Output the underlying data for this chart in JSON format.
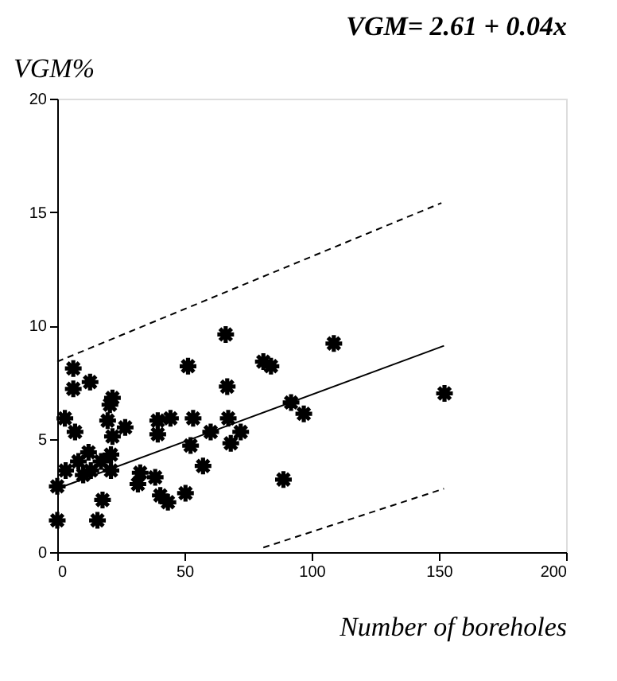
{
  "chart_data": {
    "type": "scatter",
    "title": "VGM= 2.61 + 0.04x",
    "xlabel": "Number of boreholes",
    "ylabel": "VGM%",
    "xlim": [
      0,
      200
    ],
    "ylim": [
      0,
      20
    ],
    "xticks": [
      0,
      50,
      100,
      150,
      200
    ],
    "yticks": [
      0,
      5,
      10,
      15,
      20
    ],
    "grid": false,
    "series": [
      {
        "marker": "cross",
        "color": "#000000",
        "x": [
          0,
          0,
          3,
          6.3,
          6.3,
          7,
          12.9,
          3.3,
          8.3,
          12.3,
          13.2,
          10.2,
          17.2,
          21.1,
          21.1,
          17.8,
          15.8,
          21.7,
          20.7,
          19.8,
          26.7,
          21.7,
          32.6,
          31.7,
          38.5,
          40.5,
          43.5,
          39.5,
          39.5,
          44.5,
          50.4,
          51.4,
          52.4,
          53.4,
          57.3,
          60.3,
          66.2,
          66.8,
          67.2,
          68.2,
          72.1,
          81,
          84,
          88.9,
          91.9,
          96.9,
          108.7,
          152.2
        ],
        "values": [
          1.4,
          2.9,
          5.9,
          8.1,
          7.2,
          5.3,
          7.5,
          3.6,
          4.0,
          4.4,
          3.6,
          3.4,
          4.0,
          4.3,
          3.6,
          2.3,
          1.4,
          6.8,
          6.5,
          5.8,
          5.5,
          5.1,
          3.5,
          3.0,
          3.3,
          2.5,
          2.2,
          5.8,
          5.2,
          5.9,
          2.6,
          8.2,
          4.7,
          5.9,
          3.8,
          5.3,
          9.6,
          7.3,
          5.9,
          4.8,
          5.3,
          8.4,
          8.2,
          3.2,
          6.6,
          6.1,
          9.2,
          7.0
        ]
      },
      {
        "type": "line",
        "line_style": "solid",
        "color": "#000000",
        "x": [
          0,
          152
        ],
        "values": [
          2.8,
          9.1
        ]
      },
      {
        "type": "line",
        "line_style": "dashed",
        "color": "#000000",
        "x": [
          0,
          151
        ],
        "values": [
          8.4,
          15.4
        ]
      },
      {
        "type": "line",
        "line_style": "dashed",
        "color": "#000000",
        "x": [
          81,
          152
        ],
        "values": [
          0.2,
          2.8
        ]
      }
    ]
  }
}
